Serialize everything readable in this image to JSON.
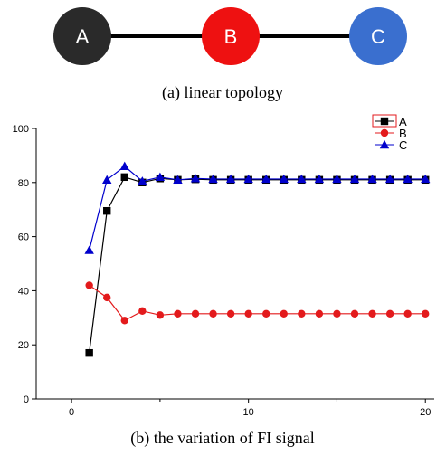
{
  "topology": {
    "nodes": [
      {
        "label": "A",
        "color": "#2a2a2a"
      },
      {
        "label": "B",
        "color": "#ee1111"
      },
      {
        "label": "C",
        "color": "#3a6fcf"
      }
    ],
    "caption": "(a)  linear  topology"
  },
  "chart_caption": "(b)  the  variation  of  FI  signal",
  "chart_data": {
    "type": "line",
    "title": "",
    "xlabel": "",
    "ylabel": "",
    "xlim": [
      -2,
      20.5
    ],
    "ylim": [
      0,
      100
    ],
    "x_ticks": [
      0,
      10,
      20
    ],
    "y_ticks": [
      0,
      20,
      40,
      60,
      80,
      100
    ],
    "legend_position": "top-right",
    "x": [
      1,
      2,
      3,
      4,
      5,
      6,
      7,
      8,
      9,
      10,
      11,
      12,
      13,
      14,
      15,
      16,
      17,
      18,
      19,
      20
    ],
    "series": [
      {
        "name": "A",
        "color": "#000000",
        "marker": "square",
        "values": [
          17,
          69.5,
          82,
          80,
          81.5,
          81,
          81.2,
          81,
          81,
          81,
          81,
          81,
          81,
          81,
          81,
          81,
          81,
          81,
          81,
          81
        ]
      },
      {
        "name": "B",
        "color": "#e31a1c",
        "marker": "circle",
        "values": [
          42,
          37.5,
          29,
          32.5,
          31,
          31.5,
          31.5,
          31.5,
          31.5,
          31.5,
          31.5,
          31.5,
          31.5,
          31.5,
          31.5,
          31.5,
          31.5,
          31.5,
          31.5,
          31.5
        ]
      },
      {
        "name": "C",
        "color": "#0000cc",
        "marker": "triangle",
        "values": [
          55,
          81,
          86,
          80.5,
          82,
          81,
          81.5,
          81.3,
          81.3,
          81.3,
          81.3,
          81.3,
          81.3,
          81.3,
          81.3,
          81.3,
          81.3,
          81.3,
          81.3,
          81.3
        ]
      }
    ]
  }
}
